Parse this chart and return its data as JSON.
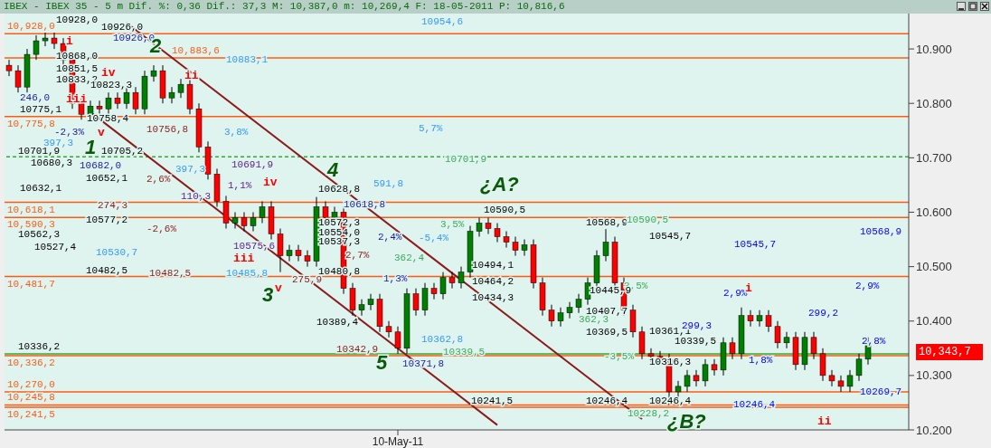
{
  "chart_data": {
    "type": "candlestick",
    "title": "IBEX - IBEX 35 -  5 m Dif. %: 0,36 Dif.: 37,3 M: 10,387,0 m: 10,269,4 F: 18-05-2011 P: 10,816,6",
    "categories": [
      null,
      null,
      null,
      null,
      null,
      null,
      null,
      null,
      null,
      null,
      null,
      null,
      null,
      null,
      null,
      null,
      null,
      null,
      null,
      null,
      null,
      null,
      null,
      null,
      null,
      null,
      null,
      null,
      null,
      null,
      null,
      null,
      null,
      null,
      null,
      null,
      null,
      null,
      null,
      null,
      null,
      null,
      null,
      "10-May-11",
      null,
      null,
      null,
      null,
      null,
      null,
      null,
      null,
      null,
      null,
      null,
      null,
      null,
      null,
      null,
      null,
      null,
      null,
      null,
      null,
      null,
      null,
      null,
      null,
      null,
      null,
      null,
      null,
      null,
      null,
      null,
      null,
      null,
      null,
      null,
      null,
      null,
      null,
      null,
      null,
      null,
      null,
      null,
      null,
      null,
      null,
      null,
      null,
      null,
      null,
      null,
      null,
      null,
      null,
      null,
      null
    ],
    "ohlc": [
      [
        10870,
        10880,
        10850,
        10860
      ],
      [
        10860,
        10870,
        10820,
        10830
      ],
      [
        10830,
        10900,
        10820,
        10890
      ],
      [
        10890,
        10925,
        10880,
        10915
      ],
      [
        10915,
        10930,
        10905,
        10920
      ],
      [
        10920,
        10930,
        10900,
        10910
      ],
      [
        10910,
        10920,
        10870,
        10880
      ],
      [
        10880,
        10890,
        10790,
        10800
      ],
      [
        10800,
        10810,
        10770,
        10780
      ],
      [
        10780,
        10805,
        10770,
        10795
      ],
      [
        10795,
        10805,
        10780,
        10790
      ],
      [
        10790,
        10820,
        10780,
        10810
      ],
      [
        10810,
        10820,
        10790,
        10800
      ],
      [
        10800,
        10830,
        10790,
        10820
      ],
      [
        10820,
        10830,
        10780,
        10790
      ],
      [
        10790,
        10860,
        10780,
        10850
      ],
      [
        10850,
        10870,
        10840,
        10860
      ],
      [
        10860,
        10870,
        10800,
        10810
      ],
      [
        10810,
        10830,
        10800,
        10820
      ],
      [
        10820,
        10845,
        10810,
        10835
      ],
      [
        10835,
        10845,
        10780,
        10790
      ],
      [
        10790,
        10800,
        10710,
        10720
      ],
      [
        10720,
        10730,
        10660,
        10670
      ],
      [
        10670,
        10680,
        10610,
        10620
      ],
      [
        10620,
        10630,
        10570,
        10580
      ],
      [
        10580,
        10600,
        10570,
        10590
      ],
      [
        10590,
        10600,
        10565,
        10575
      ],
      [
        10575,
        10600,
        10565,
        10590
      ],
      [
        10590,
        10620,
        10580,
        10610
      ],
      [
        10610,
        10620,
        10550,
        10560
      ],
      [
        10560,
        10570,
        10490,
        10520
      ],
      [
        10520,
        10540,
        10510,
        10530
      ],
      [
        10530,
        10540,
        10510,
        10520
      ],
      [
        10520,
        10530,
        10500,
        10510
      ],
      [
        10510,
        10628,
        10500,
        10610
      ],
      [
        10610,
        10620,
        10580,
        10590
      ],
      [
        10590,
        10610,
        10580,
        10600
      ],
      [
        10600,
        10610,
        10450,
        10460
      ],
      [
        10460,
        10470,
        10410,
        10420
      ],
      [
        10420,
        10440,
        10410,
        10430
      ],
      [
        10430,
        10450,
        10420,
        10440
      ],
      [
        10440,
        10450,
        10380,
        10390
      ],
      [
        10390,
        10400,
        10370,
        10380
      ],
      [
        10380,
        10390,
        10340,
        10350
      ],
      [
        10350,
        10460,
        10340,
        10450
      ],
      [
        10450,
        10460,
        10410,
        10420
      ],
      [
        10420,
        10470,
        10410,
        10460
      ],
      [
        10460,
        10470,
        10440,
        10450
      ],
      [
        10450,
        10490,
        10440,
        10480
      ],
      [
        10480,
        10490,
        10460,
        10470
      ],
      [
        10470,
        10500,
        10460,
        10490
      ],
      [
        10490,
        10575,
        10480,
        10565
      ],
      [
        10565,
        10590,
        10555,
        10580
      ],
      [
        10580,
        10590,
        10560,
        10570
      ],
      [
        10570,
        10580,
        10545,
        10555
      ],
      [
        10555,
        10565,
        10535,
        10545
      ],
      [
        10545,
        10555,
        10520,
        10530
      ],
      [
        10530,
        10550,
        10520,
        10540
      ],
      [
        10540,
        10550,
        10460,
        10470
      ],
      [
        10470,
        10480,
        10410,
        10420
      ],
      [
        10420,
        10430,
        10390,
        10400
      ],
      [
        10400,
        10425,
        10390,
        10415
      ],
      [
        10415,
        10435,
        10405,
        10425
      ],
      [
        10425,
        10450,
        10415,
        10440
      ],
      [
        10440,
        10480,
        10430,
        10470
      ],
      [
        10470,
        10530,
        10460,
        10520
      ],
      [
        10520,
        10569,
        10510,
        10545
      ],
      [
        10545,
        10555,
        10460,
        10470
      ],
      [
        10470,
        10480,
        10410,
        10420
      ],
      [
        10420,
        10430,
        10370,
        10380
      ],
      [
        10380,
        10390,
        10330,
        10340
      ],
      [
        10340,
        10350,
        10325,
        10335
      ],
      [
        10335,
        10345,
        10320,
        10330
      ],
      [
        10330,
        10340,
        10246,
        10270
      ],
      [
        10270,
        10290,
        10260,
        10280
      ],
      [
        10280,
        10310,
        10270,
        10300
      ],
      [
        10300,
        10310,
        10280,
        10290
      ],
      [
        10290,
        10330,
        10280,
        10320
      ],
      [
        10320,
        10330,
        10300,
        10310
      ],
      [
        10310,
        10370,
        10300,
        10360
      ],
      [
        10360,
        10370,
        10330,
        10340
      ],
      [
        10340,
        10425,
        10330,
        10410
      ],
      [
        10410,
        10420,
        10390,
        10400
      ],
      [
        10400,
        10420,
        10390,
        10410
      ],
      [
        10410,
        10420,
        10380,
        10390
      ],
      [
        10390,
        10400,
        10350,
        10360
      ],
      [
        10360,
        10380,
        10350,
        10370
      ],
      [
        10370,
        10380,
        10310,
        10320
      ],
      [
        10320,
        10380,
        10310,
        10370
      ],
      [
        10370,
        10380,
        10330,
        10340
      ],
      [
        10340,
        10350,
        10290,
        10300
      ],
      [
        10300,
        10310,
        10280,
        10290
      ],
      [
        10290,
        10300,
        10270,
        10280
      ],
      [
        10280,
        10310,
        10270,
        10300
      ],
      [
        10300,
        10340,
        10290,
        10330
      ],
      [
        10330,
        10370,
        10320,
        10355
      ],
      null,
      null,
      null,
      null
    ],
    "colors": [
      "#ff0000",
      "#ff0000",
      "#008000",
      "#008000",
      "#008000",
      "#ff0000",
      "#ff0000",
      "#ff0000",
      "#ff0000",
      "#008000",
      "#ff0000",
      "#008000",
      "#ff0000",
      "#008000",
      "#ff0000",
      "#008000",
      "#008000",
      "#ff0000",
      "#008000",
      "#008000",
      "#ff0000",
      "#ff0000",
      "#ff0000",
      "#ff0000",
      "#ff0000",
      "#008000",
      "#ff0000",
      "#008000",
      "#008000",
      "#ff0000",
      "#ff0000",
      "#008000",
      "#ff0000",
      "#ff0000",
      "#008000",
      "#ff0000",
      "#008000",
      "#ff0000",
      "#ff0000",
      "#008000",
      "#008000",
      "#ff0000",
      "#ff0000",
      "#ff0000",
      "#008000",
      "#ff0000",
      "#008000",
      "#ff0000",
      "#008000",
      "#ff0000",
      "#008000",
      "#008000",
      "#008000",
      "#ff0000",
      "#ff0000",
      "#ff0000",
      "#ff0000",
      "#008000",
      "#ff0000",
      "#ff0000",
      "#ff0000",
      "#008000",
      "#008000",
      "#008000",
      "#008000",
      "#008000",
      "#008000",
      "#ff0000",
      "#ff0000",
      "#ff0000",
      "#ff0000",
      "#ff0000",
      "#ff0000",
      "#ff0000",
      "#008000",
      "#008000",
      "#ff0000",
      "#008000",
      "#ff0000",
      "#008000",
      "#ff0000",
      "#008000",
      "#ff0000",
      "#008000",
      "#ff0000",
      "#ff0000",
      "#008000",
      "#ff0000",
      "#008000",
      "#ff0000",
      "#ff0000",
      "#ff0000",
      "#ff0000",
      "#008000",
      "#008000",
      "#008000",
      null,
      null,
      null,
      null
    ],
    "series": [
      {
        "type": "line",
        "color": "#8b1a1a",
        "values": [
          null,
          null,
          null,
          null,
          null,
          null,
          null,
          null,
          null,
          null,
          null,
          null,
          null,
          10948,
          null,
          null,
          null,
          null,
          null,
          null,
          null,
          null,
          null,
          null,
          null,
          null,
          null,
          null,
          null,
          null,
          null,
          null,
          null,
          null,
          null,
          null,
          null,
          null,
          null,
          null,
          null,
          null,
          null,
          null,
          null,
          null,
          null,
          null,
          null,
          null,
          null,
          null,
          null,
          null,
          null,
          null,
          null,
          null,
          null,
          null,
          null,
          null,
          null,
          null,
          null,
          null,
          null,
          null,
          null,
          null,
          10220,
          null,
          null,
          null,
          null,
          null,
          null,
          null,
          null,
          null,
          null,
          null,
          null,
          null,
          null,
          null,
          null,
          null,
          null,
          null,
          null,
          null,
          null,
          null,
          null,
          null,
          null,
          null,
          null,
          null
        ]
      },
      {
        "type": "line",
        "color": "#8b1a1a",
        "values": [
          null,
          null,
          null,
          null,
          null,
          null,
          null,
          null,
          null,
          10784,
          null,
          null,
          null,
          null,
          null,
          null,
          null,
          null,
          null,
          null,
          null,
          null,
          null,
          null,
          null,
          null,
          null,
          null,
          null,
          null,
          null,
          null,
          null,
          null,
          null,
          null,
          null,
          null,
          null,
          null,
          null,
          null,
          null,
          null,
          null,
          null,
          null,
          null,
          null,
          null,
          null,
          null,
          null,
          null,
          10209,
          null,
          null,
          null,
          null,
          null,
          null,
          null,
          null,
          null,
          null,
          null,
          null,
          null,
          null,
          null,
          null,
          null,
          null,
          null,
          null,
          null,
          null,
          null,
          null,
          null,
          null,
          null,
          null,
          null,
          null,
          null,
          null,
          null,
          null,
          null,
          null,
          null,
          null,
          null,
          null,
          null,
          null,
          null,
          null,
          null
        ]
      }
    ],
    "ylim": [
      10200,
      10965
    ],
    "yticks": [
      {
        "value": 10200,
        "label": "10.200"
      },
      {
        "value": 10300,
        "label": "10.300"
      },
      {
        "value": 10400,
        "label": "10.400"
      },
      {
        "value": 10500,
        "label": "10.500"
      },
      {
        "value": 10600,
        "label": "10.600"
      },
      {
        "value": 10700,
        "label": "10.700"
      },
      {
        "value": 10800,
        "label": "10.800"
      },
      {
        "value": 10900,
        "label": "10.900"
      }
    ],
    "grid": false,
    "legend": false,
    "ref_lines": [
      {
        "axis": "y",
        "value": 10928,
        "label": "10,928,0",
        "color": "#ff5a14"
      },
      {
        "axis": "y",
        "value": 10883.6,
        "label": "10,883,6",
        "color": "#ff5a14"
      },
      {
        "axis": "y",
        "value": 10775.8,
        "label": "10,775,8",
        "color": "#ff5a14"
      },
      {
        "axis": "y",
        "value": 10618.1,
        "label": "10,618,1",
        "color": "#ff5a14"
      },
      {
        "axis": "y",
        "value": 10590.3,
        "label": "10,590,3",
        "color": "#ff5a14"
      },
      {
        "axis": "y",
        "value": 10481.7,
        "label": "10,481,7",
        "color": "#ff5a14"
      },
      {
        "axis": "y",
        "value": 10336.2,
        "label": "10,336,2",
        "color": "#ff5a14"
      },
      {
        "axis": "y",
        "value": 10270,
        "label": "10,270,0",
        "color": "#ff5a14"
      },
      {
        "axis": "y",
        "value": 10245.8,
        "label": "10,245,8",
        "color": "#ff5a14"
      },
      {
        "axis": "y",
        "value": 10241.5,
        "label": "10,241,5",
        "color": "#ff5a14"
      },
      {
        "axis": "y",
        "value": 10701.9,
        "color": "#33aa33",
        "line_style": "dashed"
      },
      {
        "axis": "y",
        "value": 10339.5,
        "color": "#33aa33"
      }
    ],
    "annotations": [
      "10928,0",
      "10926,0",
      "10926,0",
      "10868,0",
      "10851,5",
      "10833,2",
      "10823,3",
      "246,0",
      "10775,1",
      "10758,4",
      "-2,3%",
      "10756,8",
      "3,8%",
      "397,3",
      "10701,9",
      "10705,2",
      "10680,3",
      "10682,0",
      "397,3",
      "10691,9",
      "10652,1",
      "2,6%",
      "1,1%",
      "10632,1",
      "110,3",
      "274,3",
      "10577,2",
      "10575,6",
      "10562,3",
      "-2,6%",
      "10527,4",
      "10530,7",
      "10482,5",
      "10482,5",
      "10485,8",
      "10883,1",
      "10954,6",
      "5,7%",
      "10701,9",
      "591,8",
      "10628,8",
      "10618,8",
      "10572,3",
      "10554,0",
      "10537,3",
      "2,4%",
      "2,7%",
      "10480,8",
      "275,9",
      "1,3%",
      "10389,4",
      "10371,8",
      "10362,8",
      "10342,9",
      "10339,5",
      "362,4",
      "-5,4%",
      "3,5%",
      "10590,5",
      "10494,1",
      "10464,2",
      "10434,3",
      "10336,2",
      "10241,5",
      "10568,9",
      "10590,5",
      "10545,7",
      "10545,7",
      "3,5%",
      "10445,9",
      "10407,7",
      "362,3",
      "10369,5",
      "10361,1",
      "10339,5",
      "10316,3",
      "10246,4",
      "10246,4",
      "10246,4",
      "10228,2",
      "299,3",
      "2,9%",
      "1,8%",
      "299,2",
      "2,9%",
      "2,8%",
      "10568,9",
      "10269,7",
      "10,343,7",
      "-3,5%",
      "1",
      "2",
      "3",
      "4",
      "5",
      "¿A?",
      "¿B?",
      "i",
      "iv",
      "iii",
      "v",
      "ii",
      "iv",
      "iii",
      "v",
      "i",
      "ii"
    ]
  }
}
